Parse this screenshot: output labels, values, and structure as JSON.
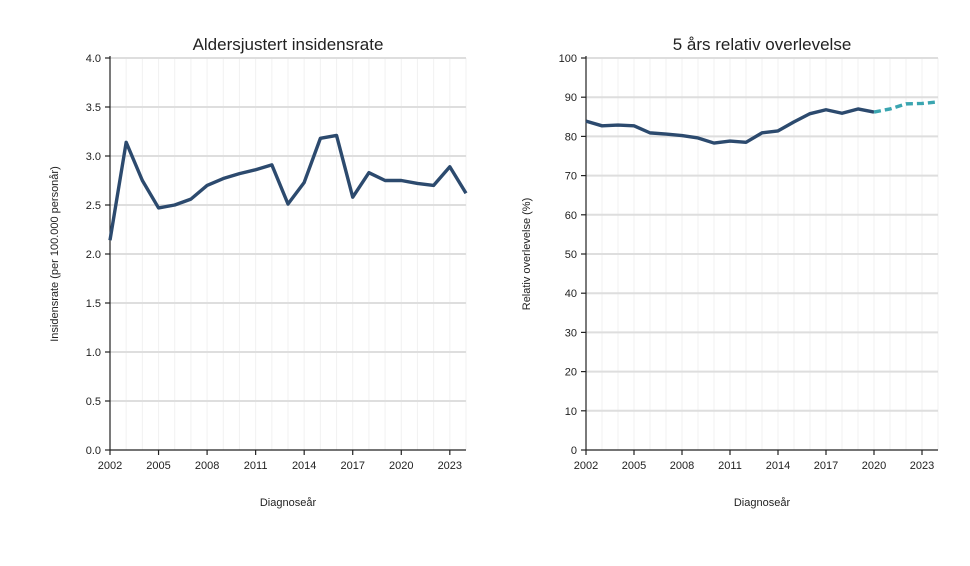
{
  "chart_data": [
    {
      "type": "line",
      "title": "Aldersjustert insidensrate",
      "xlabel": "Diagnoseår",
      "ylabel": "Insidensrate (per 100.000 personår)",
      "xlim": [
        2002,
        2024
      ],
      "ylim": [
        0,
        4.0
      ],
      "x_ticks": [
        2002,
        2005,
        2008,
        2011,
        2014,
        2017,
        2020,
        2023
      ],
      "x_tick_labels": [
        "2002",
        "2005",
        "2008",
        "2011",
        "2014",
        "2017",
        "2020",
        "2023"
      ],
      "y_ticks": [
        0,
        0.5,
        1.0,
        1.5,
        2.0,
        2.5,
        3.0,
        3.5,
        4.0
      ],
      "y_tick_labels": [
        "0.0",
        "0.5",
        "1.0",
        "1.5",
        "2.0",
        "2.5",
        "3.0",
        "3.5",
        "4.0"
      ],
      "grid": true,
      "series": [
        {
          "style": "solid",
          "color": "#2c4a6e",
          "x": [
            2002,
            2003,
            2004,
            2005,
            2006,
            2007,
            2008,
            2009,
            2010,
            2011,
            2012,
            2013,
            2014,
            2015,
            2016,
            2017,
            2018,
            2019,
            2020,
            2021,
            2022,
            2023,
            2024
          ],
          "values": [
            2.14,
            3.14,
            2.75,
            2.47,
            2.5,
            2.56,
            2.7,
            2.77,
            2.82,
            2.86,
            2.91,
            2.51,
            2.73,
            3.18,
            3.21,
            2.58,
            2.83,
            2.75,
            2.75,
            2.72,
            2.7,
            2.89,
            2.62
          ]
        }
      ]
    },
    {
      "type": "line",
      "title": "5 års relativ overlevelse",
      "xlabel": "Diagnoseår",
      "ylabel": "Relativ overlevelse (%)",
      "xlim": [
        2002,
        2024
      ],
      "ylim": [
        0,
        100
      ],
      "x_ticks": [
        2002,
        2005,
        2008,
        2011,
        2014,
        2017,
        2020,
        2023
      ],
      "x_tick_labels": [
        "2002",
        "2005",
        "2008",
        "2011",
        "2014",
        "2017",
        "2020",
        "2023"
      ],
      "y_ticks": [
        0,
        10,
        20,
        30,
        40,
        50,
        60,
        70,
        80,
        90,
        100
      ],
      "y_tick_labels": [
        "0",
        "10",
        "20",
        "30",
        "40",
        "50",
        "60",
        "70",
        "80",
        "90",
        "100"
      ],
      "grid": true,
      "series": [
        {
          "style": "solid",
          "color": "#2c4a6e",
          "x": [
            2002,
            2003,
            2004,
            2005,
            2006,
            2007,
            2008,
            2009,
            2010,
            2011,
            2012,
            2013,
            2014,
            2015,
            2016,
            2017,
            2018,
            2019,
            2020
          ],
          "values": [
            83.9,
            82.7,
            82.9,
            82.7,
            80.9,
            80.6,
            80.2,
            79.6,
            78.3,
            78.8,
            78.5,
            80.9,
            81.4,
            83.7,
            85.8,
            86.8,
            85.9,
            87.0,
            86.2
          ]
        },
        {
          "style": "dashed",
          "color": "#3aa5b0",
          "x": [
            2020,
            2021,
            2022,
            2023,
            2024
          ],
          "values": [
            86.2,
            87.0,
            88.3,
            88.4,
            88.8
          ]
        }
      ]
    }
  ]
}
